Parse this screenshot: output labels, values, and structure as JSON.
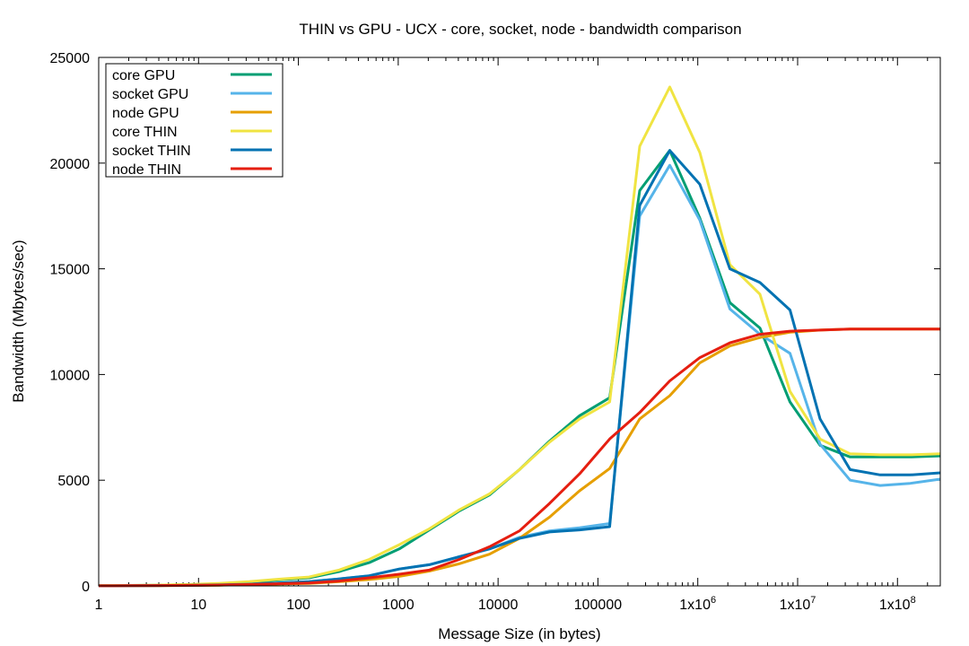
{
  "chart_data": {
    "type": "line",
    "title": "THIN vs GPU - UCX - core, socket, node - bandwidth comparison",
    "xlabel": "Message Size (in bytes)",
    "ylabel": "Bandwidth (Mbytes/sec)",
    "xscale": "log2",
    "xlim": [
      1,
      268435456
    ],
    "ylim": [
      0,
      25000
    ],
    "grid": false,
    "legend_position": "top-left",
    "x_ticks": [
      {
        "value": 1,
        "label": "1"
      },
      {
        "value": 10,
        "label": "10"
      },
      {
        "value": 100,
        "label": "100"
      },
      {
        "value": 1000,
        "label": "1000"
      },
      {
        "value": 10000,
        "label": "10000"
      },
      {
        "value": 100000,
        "label": "100000"
      },
      {
        "value": 1000000,
        "label": "1x10^6"
      },
      {
        "value": 10000000,
        "label": "1x10^7"
      },
      {
        "value": 100000000,
        "label": "1x10^8"
      }
    ],
    "y_ticks": [
      {
        "value": 0,
        "label": "0"
      },
      {
        "value": 5000,
        "label": "5000"
      },
      {
        "value": 10000,
        "label": "10000"
      },
      {
        "value": 15000,
        "label": "15000"
      },
      {
        "value": 20000,
        "label": "20000"
      },
      {
        "value": 25000,
        "label": "25000"
      }
    ],
    "x": [
      1,
      2,
      4,
      8,
      16,
      32,
      64,
      128,
      256,
      512,
      1024,
      2048,
      4096,
      8192,
      16384,
      32768,
      65536,
      131072,
      262144,
      524288,
      1048576,
      2097152,
      4194304,
      8388608,
      16777216,
      33554432,
      67108864,
      134217728,
      268435456
    ],
    "series": [
      {
        "name": "core GPU",
        "color": "#009e73",
        "values": [
          10,
          20,
          35,
          60,
          100,
          170,
          290,
          380,
          680,
          1100,
          1750,
          2650,
          3550,
          4300,
          5500,
          6850,
          8050,
          8900,
          18700,
          20600,
          17400,
          13400,
          12200,
          8700,
          6650,
          6100,
          6100,
          6100,
          6150
        ]
      },
      {
        "name": "socket GPU",
        "color": "#56b4e9",
        "values": [
          5,
          10,
          15,
          25,
          45,
          80,
          140,
          200,
          330,
          480,
          800,
          1000,
          1380,
          1750,
          2300,
          2600,
          2750,
          2950,
          17500,
          19900,
          17300,
          13100,
          11900,
          11000,
          6700,
          5000,
          4750,
          4850,
          5050
        ]
      },
      {
        "name": "node GPU",
        "color": "#e69f00",
        "values": [
          5,
          8,
          12,
          20,
          35,
          60,
          90,
          120,
          200,
          300,
          450,
          700,
          1050,
          1500,
          2250,
          3250,
          4500,
          5550,
          7900,
          9000,
          10550,
          11350,
          11750,
          12000,
          12100,
          12150,
          12150,
          12150,
          12150
        ]
      },
      {
        "name": "core THIN",
        "color": "#f0e442",
        "values": [
          10,
          20,
          40,
          70,
          120,
          200,
          320,
          420,
          750,
          1250,
          1950,
          2700,
          3600,
          4350,
          5500,
          6800,
          7900,
          8700,
          20800,
          23600,
          20500,
          15200,
          13800,
          9200,
          6950,
          6250,
          6200,
          6200,
          6250
        ]
      },
      {
        "name": "socket THIN",
        "color": "#0072b2",
        "values": [
          5,
          10,
          15,
          25,
          45,
          80,
          140,
          200,
          330,
          480,
          800,
          1000,
          1380,
          1750,
          2250,
          2550,
          2650,
          2800,
          18000,
          20600,
          19000,
          15000,
          14350,
          13050,
          7900,
          5500,
          5250,
          5250,
          5350
        ]
      },
      {
        "name": "node THIN",
        "color": "#e51e10",
        "values": [
          5,
          10,
          15,
          25,
          40,
          65,
          100,
          140,
          230,
          380,
          550,
          750,
          1250,
          1850,
          2600,
          3900,
          5300,
          6950,
          8200,
          9700,
          10800,
          11500,
          11900,
          12050,
          12100,
          12150,
          12150,
          12150,
          12150
        ]
      }
    ]
  }
}
